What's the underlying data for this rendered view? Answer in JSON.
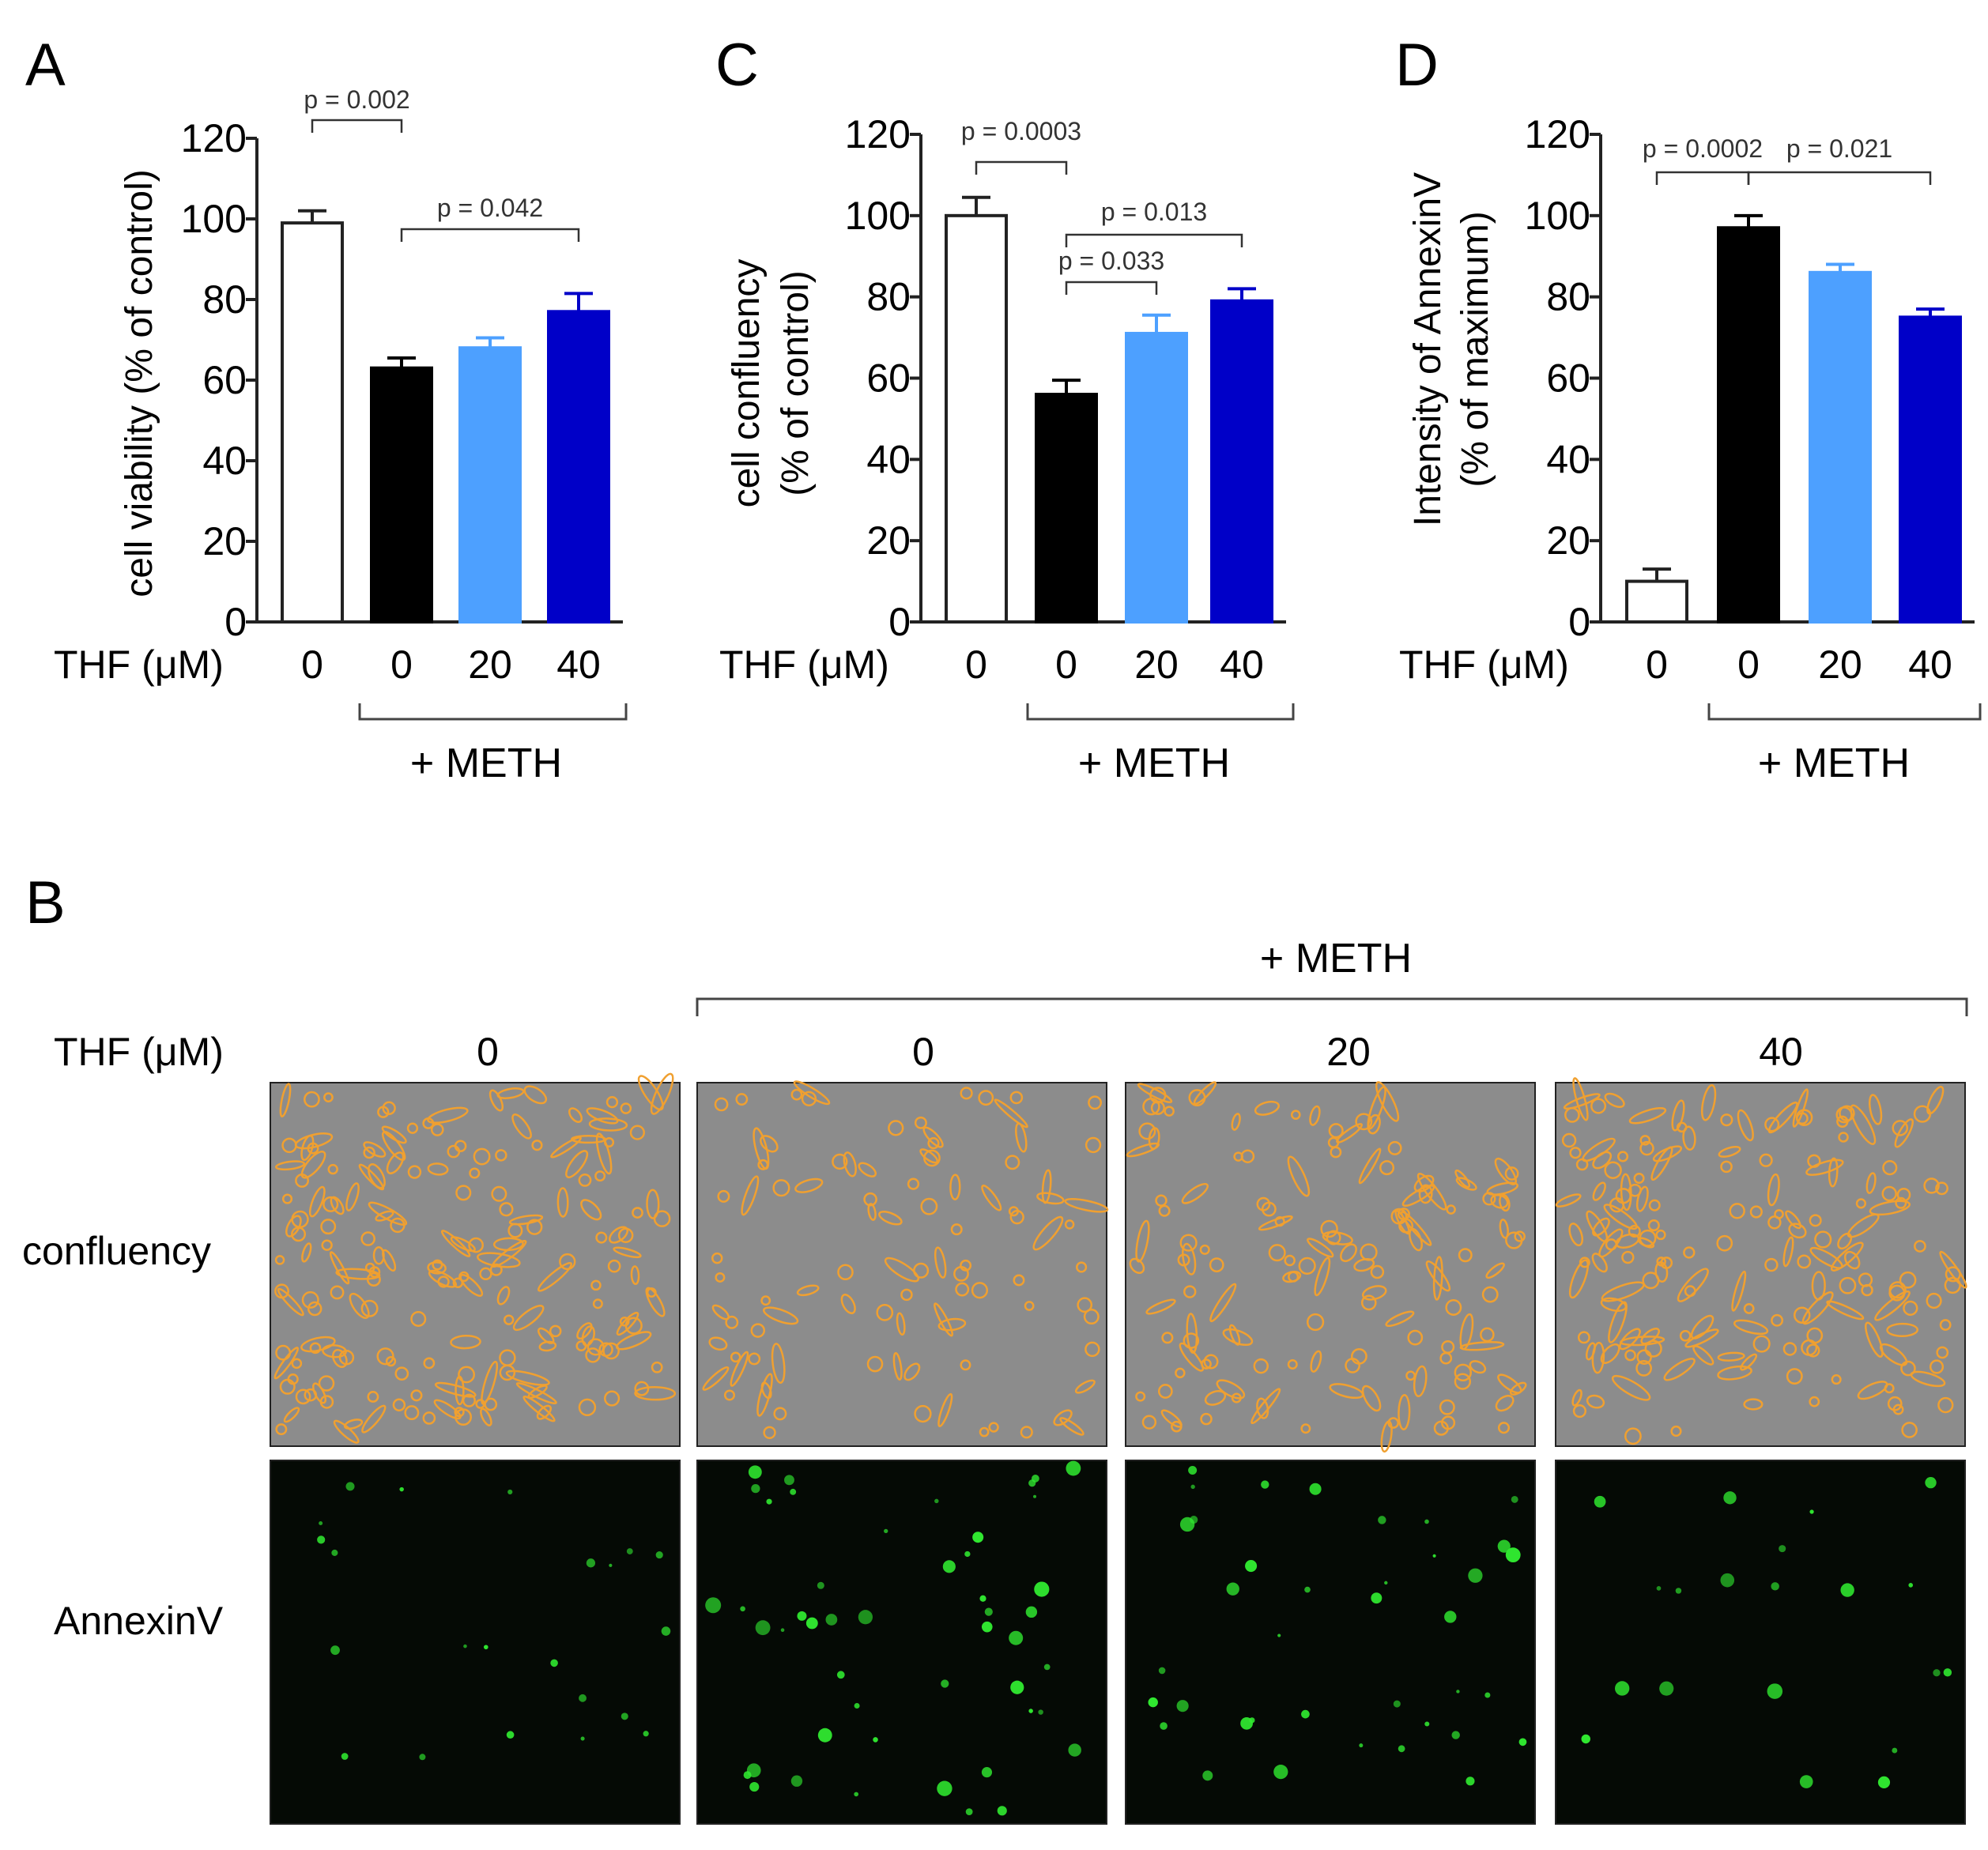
{
  "palette": {
    "control": "#ffffff",
    "meth": "#000000",
    "thf20": "#4da0ff",
    "thf40": "#0000c8",
    "confluency_bg": "#8c8c8c",
    "cell_outline": "#f0a030",
    "annexin_bg": "#050a05",
    "annexin_dot": "#30e830"
  },
  "chart_data": [
    {
      "panel": "A",
      "type": "bar",
      "ylabel": "cell viability (% of control)",
      "ylim": [
        0,
        120
      ],
      "yticks": [
        0,
        20,
        40,
        60,
        80,
        100,
        120
      ],
      "x_title": "THF (μM)",
      "categories": [
        "0",
        "0",
        "20",
        "40"
      ],
      "values": [
        99,
        63,
        68,
        77
      ],
      "errors": [
        3,
        2.5,
        2.5,
        4.5
      ],
      "group_label": "+ METH",
      "annotations": [
        {
          "text": "p = 0.002",
          "from": 0,
          "to": 1
        },
        {
          "text": "p = 0.042",
          "from": 1,
          "to": 3
        }
      ]
    },
    {
      "panel": "C",
      "type": "bar",
      "ylabel_lines": [
        "cell confluency",
        "(% of control)"
      ],
      "ylim": [
        0,
        120
      ],
      "yticks": [
        0,
        20,
        40,
        60,
        80,
        100,
        120
      ],
      "x_title": "THF (μM)",
      "categories": [
        "0",
        "0",
        "20",
        "40"
      ],
      "values": [
        100,
        56,
        71,
        79
      ],
      "errors": [
        4.5,
        3.5,
        4.5,
        3
      ],
      "group_label": "+ METH",
      "annotations": [
        {
          "text": "p = 0.0003",
          "from": 0,
          "to": 1
        },
        {
          "text": "p = 0.013",
          "from": 1,
          "to": 3
        },
        {
          "text": "p = 0.033",
          "from": 1,
          "to": 2
        }
      ]
    },
    {
      "panel": "D",
      "type": "bar",
      "ylabel_lines": [
        "Intensity of AnnexinV",
        "(% of maximum)"
      ],
      "ylim": [
        0,
        120
      ],
      "yticks": [
        0,
        20,
        40,
        60,
        80,
        100,
        120
      ],
      "x_title": "THF (μM)",
      "categories": [
        "0",
        "0",
        "20",
        "40"
      ],
      "values": [
        10,
        97,
        86,
        75
      ],
      "errors": [
        3,
        3,
        2,
        2
      ],
      "group_label": "+ METH",
      "annotations": [
        {
          "text": "p = 0.0002",
          "from": 0,
          "to": 1
        },
        {
          "text": "p = 0.021",
          "from": 1,
          "to": 3
        }
      ]
    }
  ],
  "panel_b": {
    "label": "B",
    "group_label": "+ METH",
    "x_title": "THF (μM)",
    "columns": [
      "0",
      "0",
      "20",
      "40"
    ],
    "rows": [
      "confluency",
      "AnnexinV"
    ]
  }
}
